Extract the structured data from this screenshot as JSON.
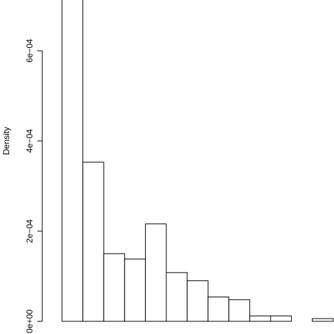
{
  "chart_data": {
    "type": "bar",
    "subtype": "histogram",
    "ylabel": "Density",
    "xlabel": "",
    "title": "",
    "ylim": [
      0,
      0.00072
    ],
    "yticks": [
      {
        "value": 0,
        "label": "0e+00"
      },
      {
        "value": 0.0002,
        "label": "2e−04"
      },
      {
        "value": 0.0004,
        "label": "4e−04"
      },
      {
        "value": 0.0006,
        "label": "6e−04"
      }
    ],
    "bars": [
      {
        "bin": 1,
        "value": 0.00072,
        "clipped": true
      },
      {
        "bin": 2,
        "value": 0.000353
      },
      {
        "bin": 3,
        "value": 0.00015
      },
      {
        "bin": 4,
        "value": 0.000138
      },
      {
        "bin": 5,
        "value": 0.000216
      },
      {
        "bin": 6,
        "value": 0.000108
      },
      {
        "bin": 7,
        "value": 9e-05
      },
      {
        "bin": 8,
        "value": 5.4e-05
      },
      {
        "bin": 9,
        "value": 4.8e-05
      },
      {
        "bin": 10,
        "value": 1.2e-05
      },
      {
        "bin": 11,
        "value": 1.2e-05
      },
      {
        "bin": 12,
        "value": 0
      },
      {
        "bin": 13,
        "value": 6e-06
      }
    ],
    "grid": false,
    "legend": "none"
  }
}
